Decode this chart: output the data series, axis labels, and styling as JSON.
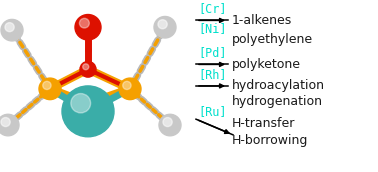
{
  "background_color": "#ffffff",
  "orange": "#f5a000",
  "red": "#dd1100",
  "teal": "#3aada8",
  "gray_ball": "#d0d0d0",
  "metal_color": "#00e0cc",
  "text_color": "#1a1a1a",
  "label_fontsize": 9.0,
  "metal_fontsize": 8.5,
  "rows": [
    {
      "metal": "[Cr]",
      "text": "1-alkenes",
      "arrow": true,
      "diag": false
    },
    {
      "metal": "[Ni]",
      "text": "polyethylene",
      "arrow": false,
      "diag": false
    },
    {
      "metal": "[Pd]",
      "text": "polyketone",
      "arrow": true,
      "diag": false
    },
    {
      "metal": "[Rh]",
      "text": "hydroacylation",
      "arrow": true,
      "diag": false
    },
    {
      "metal": "",
      "text": "hydrogenation",
      "arrow": false,
      "diag": false
    },
    {
      "metal": "[Ru]",
      "text": "H-transfer",
      "arrow": true,
      "diag": true
    },
    {
      "metal": "",
      "text": "H-borrowing",
      "arrow": false,
      "diag": false
    }
  ]
}
